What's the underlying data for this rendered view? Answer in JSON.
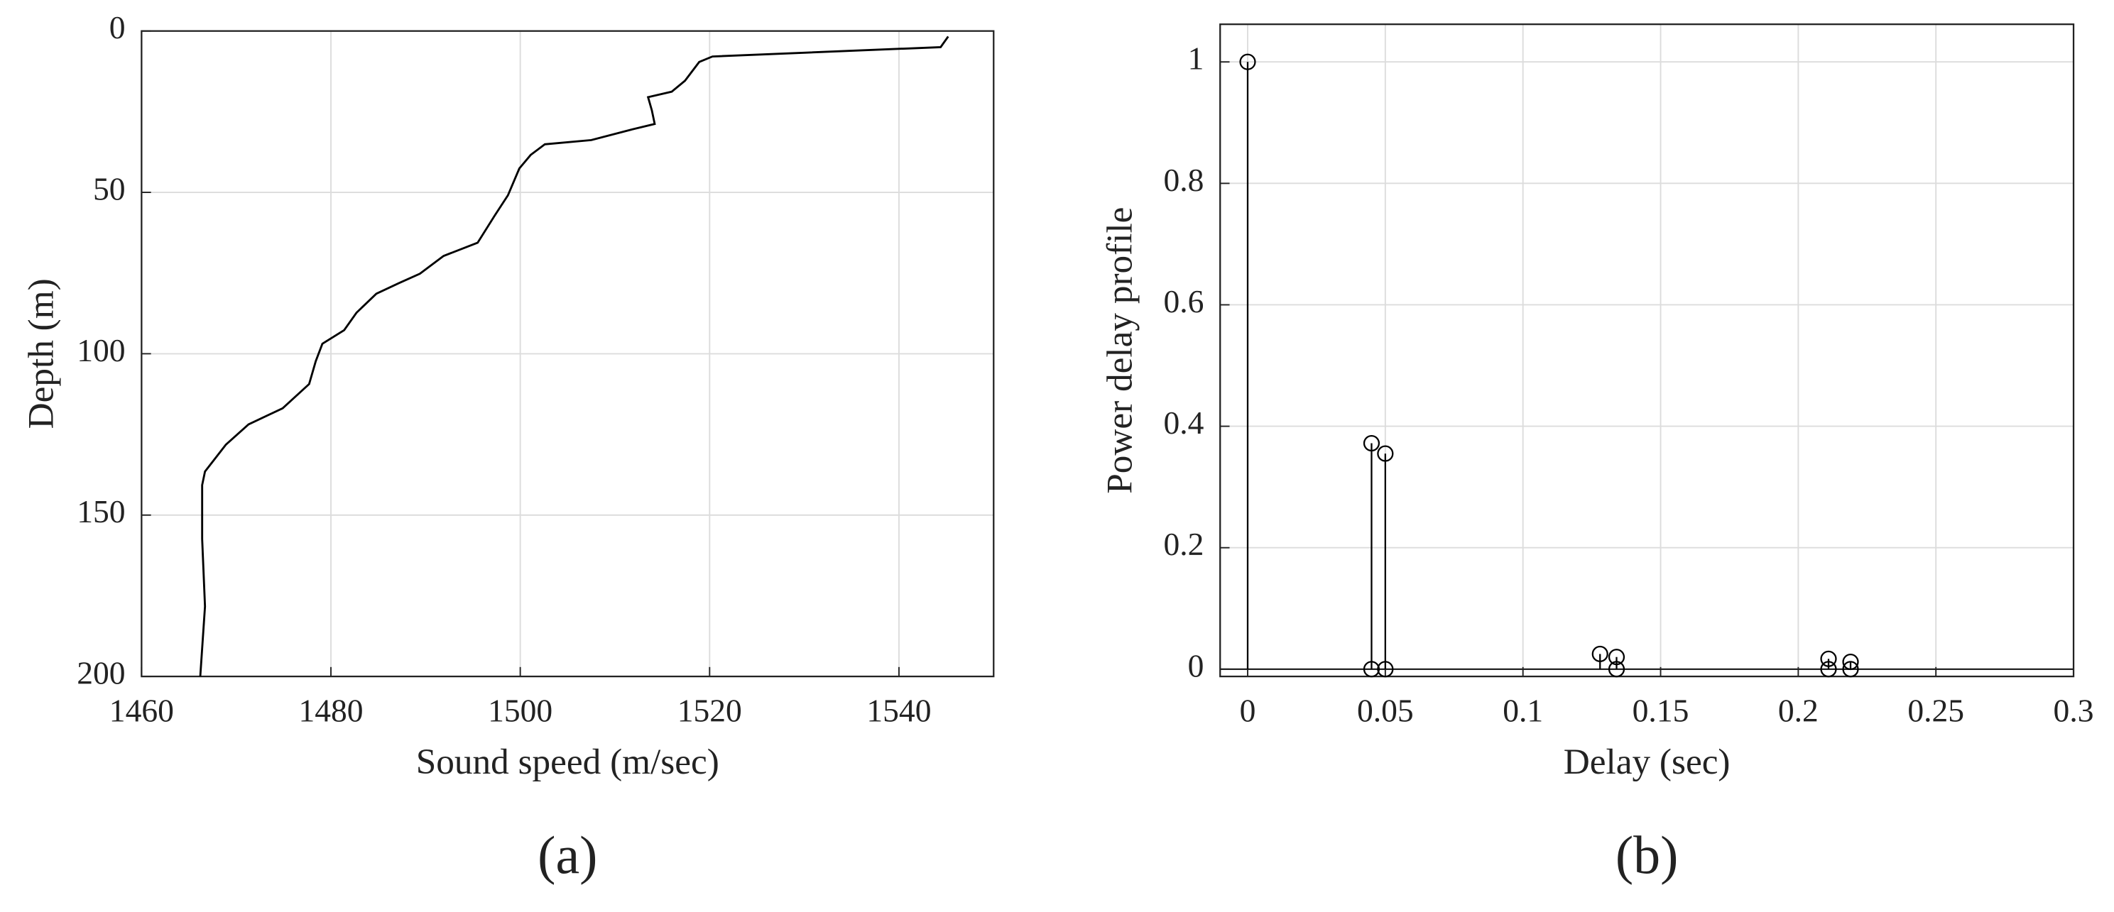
{
  "chart_data": [
    {
      "type": "line",
      "caption": "(a)",
      "xlabel": "Sound speed (m/sec)",
      "ylabel": "Depth (m)",
      "xlim": [
        1460,
        1550
      ],
      "xticks": [
        1460,
        1480,
        1500,
        1520,
        1540
      ],
      "ylim": [
        0,
        200
      ],
      "yticks": [
        0,
        50,
        100,
        150,
        200
      ],
      "y_inverted": true,
      "grid": true,
      "color": "#000000",
      "x": [
        1545.2,
        1544.4,
        1530.2,
        1520.3,
        1518.9,
        1517.4,
        1516.0,
        1513.5,
        1513.9,
        1514.2,
        1511.8,
        1507.5,
        1502.6,
        1501.1,
        1499.9,
        1498.7,
        1497.3,
        1495.5,
        1491.9,
        1489.4,
        1487.2,
        1484.8,
        1482.7,
        1481.4,
        1479.1,
        1478.4,
        1477.7,
        1474.9,
        1471.3,
        1468.9,
        1466.7,
        1466.4,
        1466.4,
        1466.7,
        1466.2
      ],
      "values": [
        1.7,
        5.0,
        6.7,
        7.9,
        9.6,
        15.4,
        18.8,
        20.5,
        24.6,
        28.8,
        30.5,
        33.8,
        35.1,
        38.4,
        42.6,
        50.9,
        57.2,
        65.6,
        69.7,
        75.2,
        78.1,
        81.4,
        87.3,
        92.7,
        96.9,
        102.3,
        109.4,
        116.9,
        121.9,
        128.2,
        136.5,
        140.7,
        157.4,
        178.3,
        200
      ]
    },
    {
      "type": "stem",
      "caption": "(b)",
      "xlabel": "Delay (sec)",
      "ylabel": "Power delay profile",
      "xlim": [
        -0.01,
        0.3
      ],
      "xticks": [
        0,
        0.05,
        0.1,
        0.15,
        0.2,
        0.25,
        0.3
      ],
      "ylim": [
        -0.012,
        1.062
      ],
      "yticks": [
        0,
        0.2,
        0.4,
        0.6,
        0.8,
        1
      ],
      "grid": true,
      "series": [
        {
          "color": "#000000",
          "x": [
            0,
            0.045,
            0.05,
            0.128,
            0.134,
            0.211,
            0.219
          ],
          "values": [
            1,
            0.372,
            0.355,
            0.025,
            0.02,
            0.017,
            0.012
          ]
        },
        {
          "color": "#000000",
          "x": [
            0.045,
            0.05,
            0.134,
            0.211,
            0.219
          ],
          "values": [
            0,
            0,
            0,
            0,
            0
          ]
        }
      ]
    }
  ]
}
